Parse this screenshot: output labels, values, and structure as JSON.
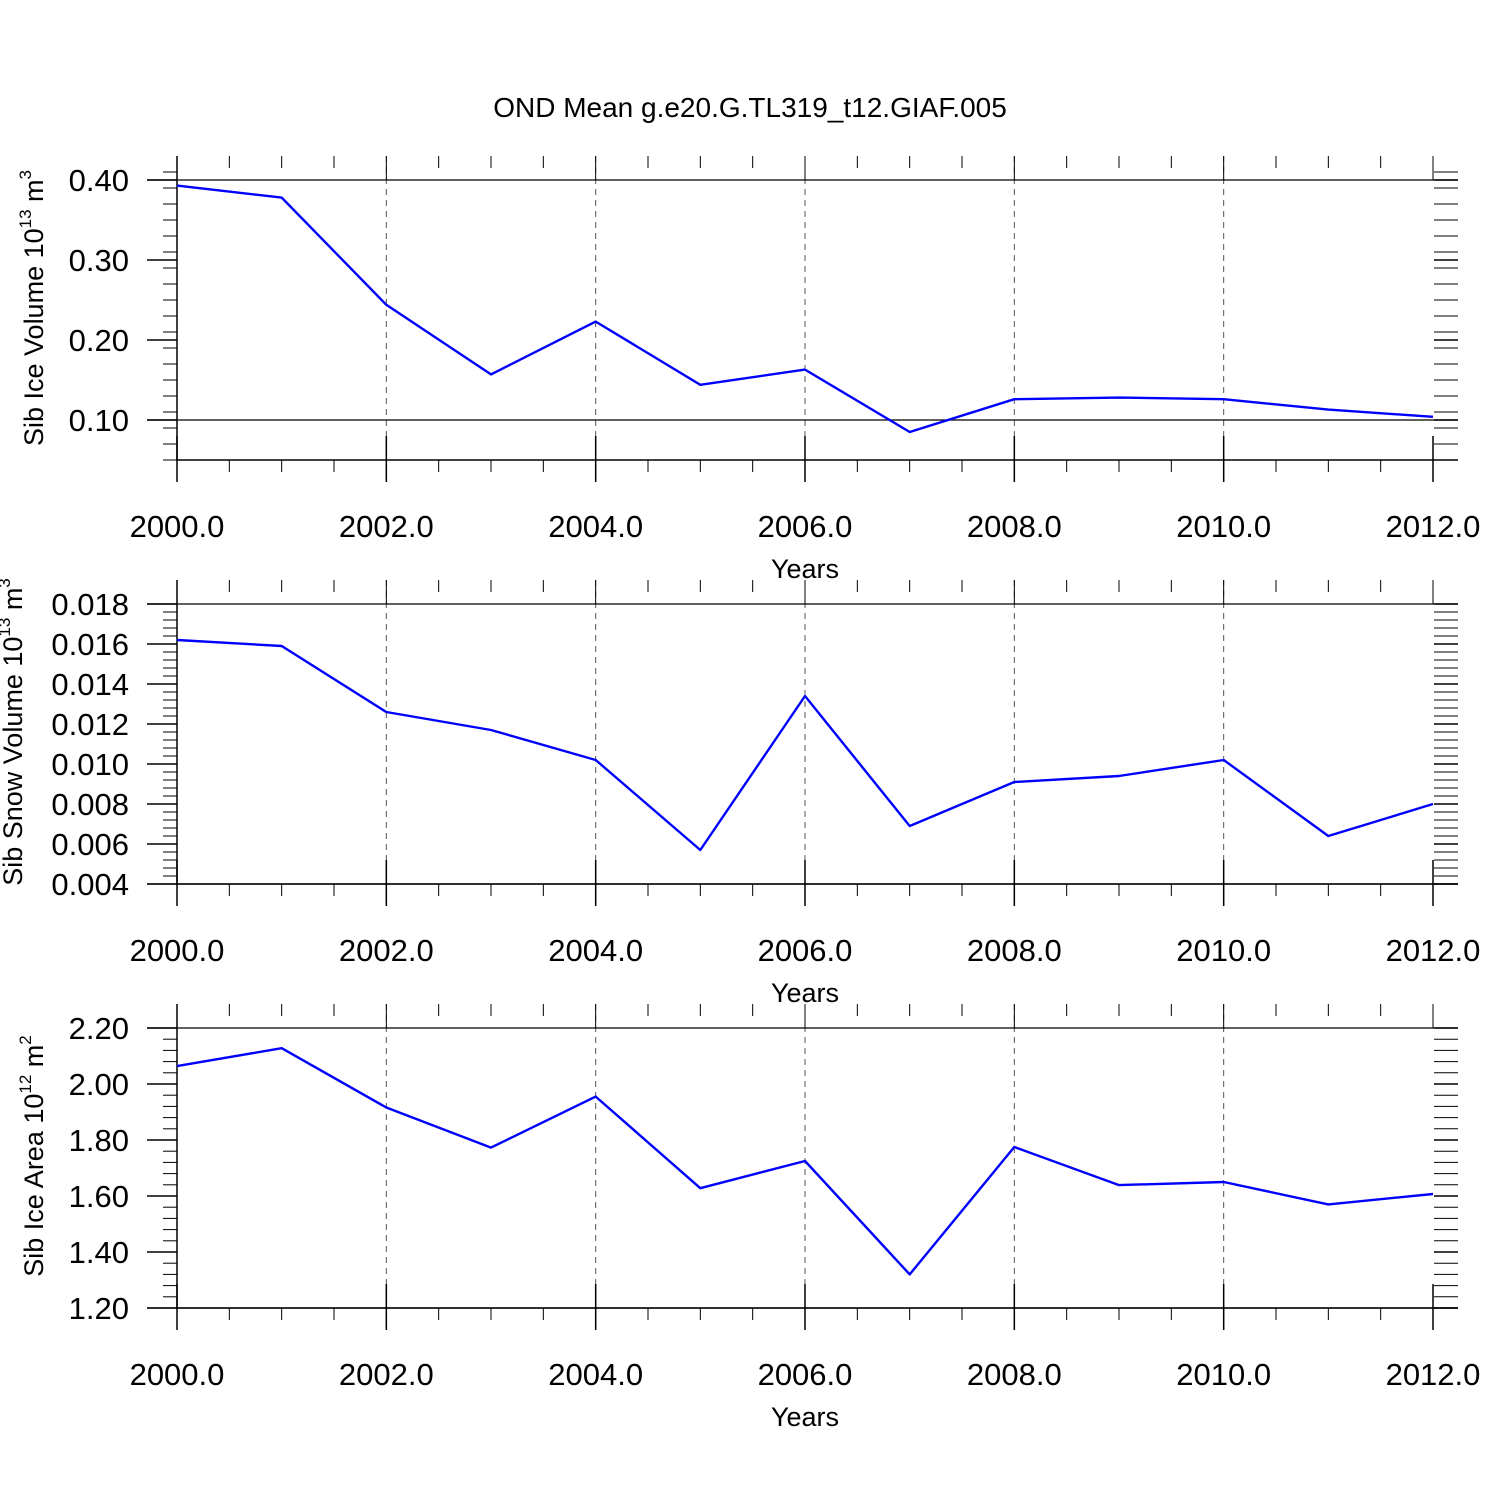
{
  "figure": {
    "title": "OND Mean g.e20.G.TL319_t12.GIAF.005"
  },
  "chart_data": [
    {
      "type": "line",
      "xlabel": "Years",
      "ylabel": {
        "main": "Sib Ice Volume 10",
        "exp": "13",
        "unit": " m",
        "unit_exp": "3"
      },
      "x": [
        2000,
        2001,
        2002,
        2003,
        2004,
        2005,
        2006,
        2007,
        2008,
        2009,
        2010,
        2011,
        2012
      ],
      "xlim": [
        2000,
        2012.15
      ],
      "xticks": [
        2000,
        2002,
        2004,
        2006,
        2008,
        2010,
        2012
      ],
      "xtick_labels": [
        "2000.0",
        "2002.0",
        "2004.0",
        "2006.0",
        "2008.0",
        "2010.0",
        "2012.0"
      ],
      "ylim": [
        0.05,
        0.4
      ],
      "yticks": [
        0.1,
        0.2,
        0.3,
        0.4
      ],
      "ytick_labels": [
        "0.10",
        "0.20",
        "0.30",
        "0.40"
      ],
      "yminor": 0.02,
      "series": [
        {
          "color": "#0000ff",
          "values": [
            0.393,
            0.378,
            0.244,
            0.157,
            0.223,
            0.144,
            0.163,
            0.085,
            0.126,
            0.128,
            0.126,
            0.113,
            0.104
          ]
        }
      ],
      "grid": "x-dashed"
    },
    {
      "type": "line",
      "xlabel": "Years",
      "ylabel": {
        "main": "Sib Snow Volume 10",
        "exp": "13",
        "unit": " m",
        "unit_exp": "3"
      },
      "x": [
        2000,
        2001,
        2002,
        2003,
        2004,
        2005,
        2006,
        2007,
        2008,
        2009,
        2010,
        2011,
        2012
      ],
      "xlim": [
        2000,
        2012.15
      ],
      "xticks": [
        2000,
        2002,
        2004,
        2006,
        2008,
        2010,
        2012
      ],
      "xtick_labels": [
        "2000.0",
        "2002.0",
        "2004.0",
        "2006.0",
        "2008.0",
        "2010.0",
        "2012.0"
      ],
      "ylim": [
        0.004,
        0.018
      ],
      "yticks": [
        0.004,
        0.006,
        0.008,
        0.01,
        0.012,
        0.014,
        0.016,
        0.018
      ],
      "ytick_labels": [
        "0.004",
        "0.006",
        "0.008",
        "0.010",
        "0.012",
        "0.014",
        "0.016",
        "0.018"
      ],
      "yminor": 0.0004,
      "series": [
        {
          "color": "#0000ff",
          "values": [
            0.0162,
            0.0159,
            0.0126,
            0.0117,
            0.0102,
            0.0057,
            0.0134,
            0.0069,
            0.0091,
            0.0094,
            0.0102,
            0.0064,
            0.008
          ]
        }
      ],
      "grid": "x-dashed"
    },
    {
      "type": "line",
      "xlabel": "Years",
      "ylabel": {
        "main": "Sib Ice Area 10",
        "exp": "12",
        "unit": " m",
        "unit_exp": "2"
      },
      "x": [
        2000,
        2001,
        2002,
        2003,
        2004,
        2005,
        2006,
        2007,
        2008,
        2009,
        2010,
        2011,
        2012
      ],
      "xlim": [
        2000,
        2012.15
      ],
      "xticks": [
        2000,
        2002,
        2004,
        2006,
        2008,
        2010,
        2012
      ],
      "xtick_labels": [
        "2000.0",
        "2002.0",
        "2004.0",
        "2006.0",
        "2008.0",
        "2010.0",
        "2012.0"
      ],
      "ylim": [
        1.2,
        2.2
      ],
      "yticks": [
        1.2,
        1.4,
        1.6,
        1.8,
        2.0,
        2.2
      ],
      "ytick_labels": [
        "1.20",
        "1.40",
        "1.60",
        "1.80",
        "2.00",
        "2.20"
      ],
      "yminor": 0.04,
      "series": [
        {
          "color": "#0000ff",
          "values": [
            2.064,
            2.128,
            1.916,
            1.773,
            1.955,
            1.628,
            1.725,
            1.32,
            1.775,
            1.639,
            1.65,
            1.57,
            1.607
          ]
        }
      ],
      "grid": "x-dashed"
    }
  ]
}
